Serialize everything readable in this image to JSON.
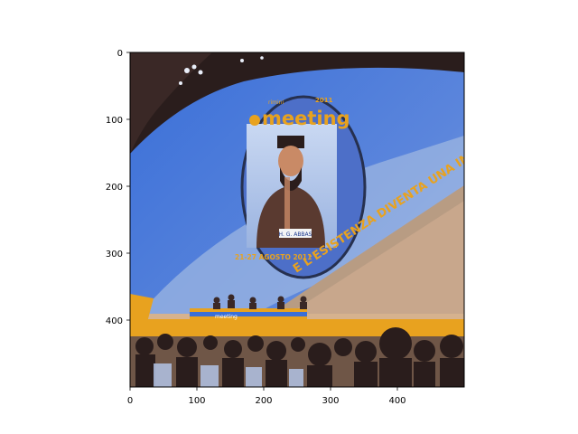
{
  "axes": {
    "x_ticks": [
      0,
      100,
      200,
      300,
      400
    ],
    "y_ticks": [
      0,
      100,
      200,
      300,
      400
    ],
    "xlim": [
      0,
      500
    ],
    "ylim": [
      500,
      0
    ],
    "image_size": [
      500,
      500
    ]
  },
  "scene": {
    "logo_small": "rimini",
    "logo_word": "meeting",
    "logo_year": "2011",
    "screen_caption": "H. G. ABBAS",
    "event_dates": "21-27 AGOSTO 2011",
    "wall_slogan": "E L'ESISTENZA DIVENTA UNA IM",
    "table_banner": "meeting",
    "colors": {
      "sky_blue": "#3a6fd8",
      "dark_stage": "#2a1d1c",
      "orange": "#e8a21f",
      "beige": "#c8a78c",
      "pale_blue": "#9cb6e2"
    }
  }
}
